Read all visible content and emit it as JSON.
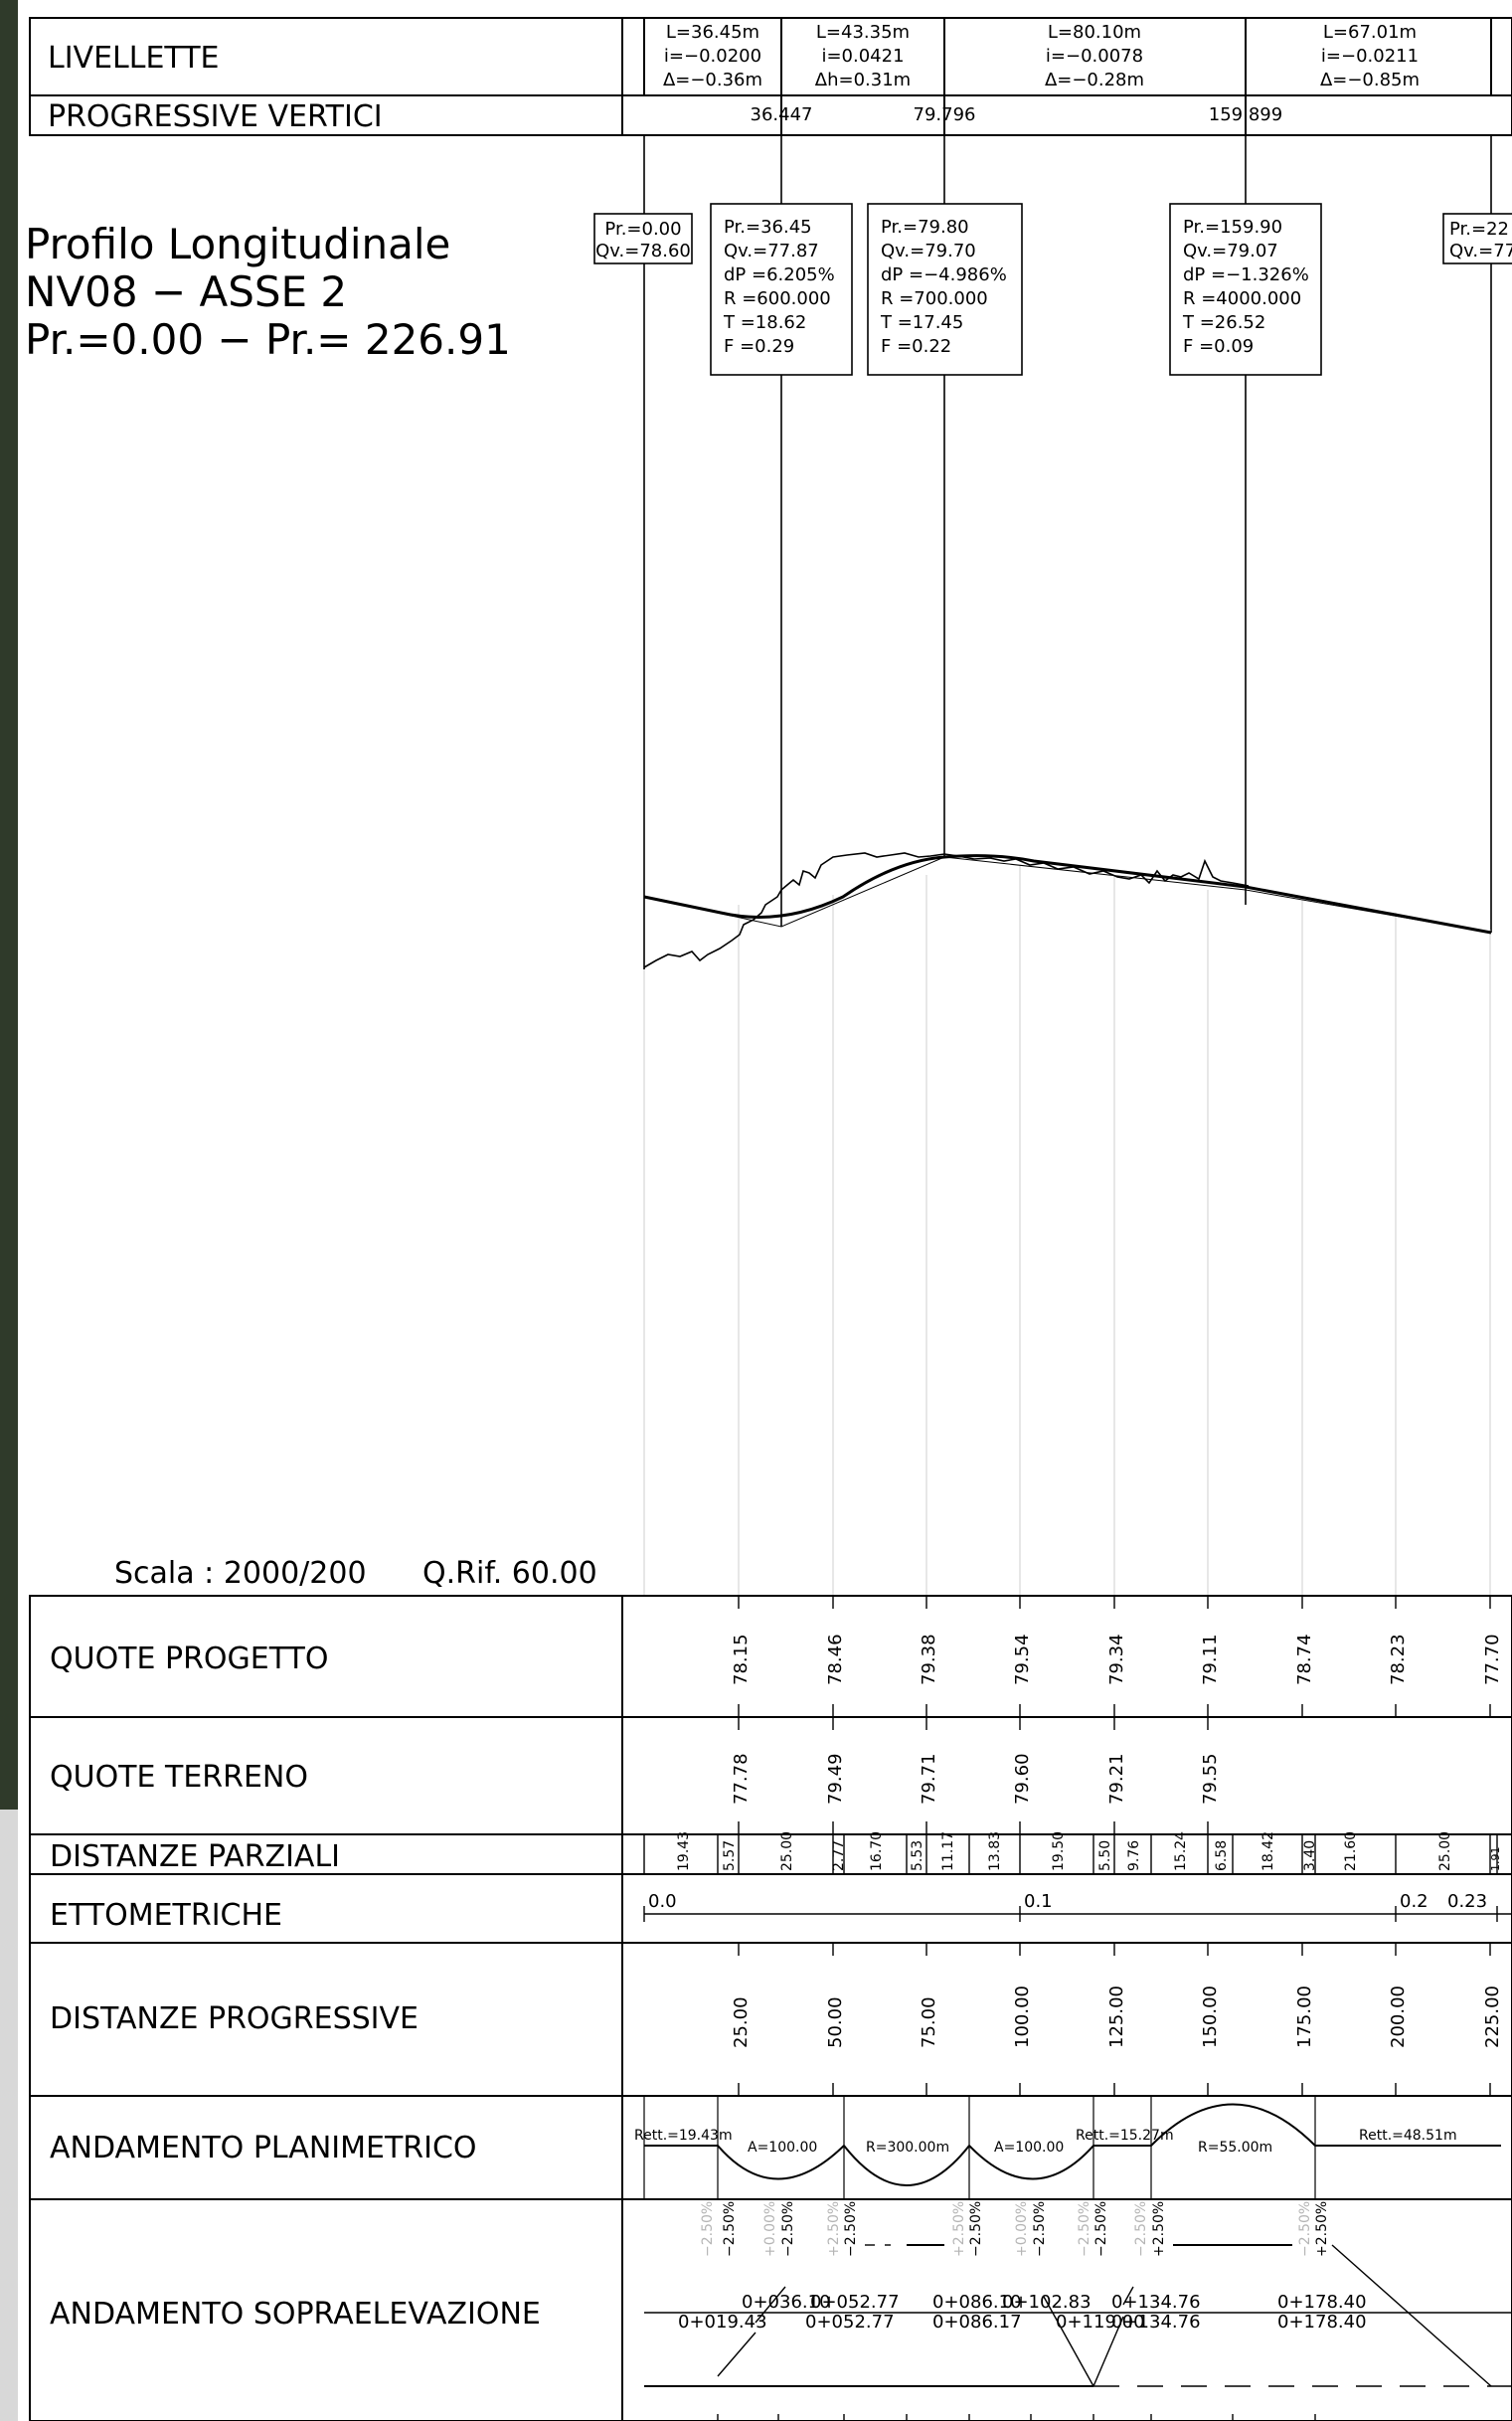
{
  "header_rows": {
    "livellette": "LIVELLETTE",
    "progressive_vertici": "PROGRESSIVE VERTICI"
  },
  "livellette": [
    [
      "L=36.45m",
      "i=−0.0200",
      "Δ=−0.36m"
    ],
    [
      "L=43.35m",
      "i=0.0421",
      "Δh=0.31m"
    ],
    [
      "L=80.10m",
      "i=−0.0078",
      "Δ=−0.28m"
    ],
    [
      "L=67.01m",
      "i=−0.0211",
      "Δ=−0.85m"
    ]
  ],
  "progressive_vertici": [
    "36.447",
    "79.796",
    "159.899"
  ],
  "title": [
    "Profilo Longitudinale",
    "NV08 − ASSE 2",
    "Pr.=0.00 − Pr.= 226.91"
  ],
  "vertex_boxes": [
    [
      "Pr.=0.00",
      "Qv.=78.60"
    ],
    [
      "Pr.=36.45",
      "Qv.=77.87",
      "dP =6.205%",
      "R =600.000",
      "T =18.62",
      "F =0.29"
    ],
    [
      "Pr.=79.80",
      "Qv.=79.70",
      "dP =−4.986%",
      "R =700.000",
      "T =17.45",
      "F =0.22"
    ],
    [
      "Pr.=159.90",
      "Qv.=79.07",
      "dP =−1.326%",
      "R =4000.000",
      "T =26.52",
      "F =0.09"
    ],
    [
      "Pr.=22",
      "Qv.=77"
    ]
  ],
  "scale": {
    "scala": "Scala : 2000/200",
    "qrif": "Q.Rif. 60.00"
  },
  "table_labels": {
    "quote_progetto": "QUOTE PROGETTO",
    "quote_terreno": "QUOTE TERRENO",
    "distanze_parziali": "DISTANZE PARZIALI",
    "ettometriche": "ETTOMETRICHE",
    "distanze_progressive": "DISTANZE PROGRESSIVE",
    "andamento_planimetrico": "ANDAMENTO PLANIMETRICO",
    "andamento_sopraelevazione": "ANDAMENTO SOPRAELEVAZIONE"
  },
  "quote_progetto": [
    "78.15",
    "78.46",
    "79.38",
    "79.54",
    "79.34",
    "79.11",
    "78.74",
    "78.23",
    "77.70"
  ],
  "quote_terreno": [
    "77.78",
    "79.49",
    "79.71",
    "79.60",
    "79.21",
    "79.55"
  ],
  "distanze_parziali": [
    "19.43",
    "5.57",
    "25.00",
    "2.77",
    "16.70",
    "5.53",
    "11.17",
    "13.83",
    "19.50",
    "5.50",
    "9.76",
    "15.24",
    "6.58",
    "18.42",
    "3.40",
    "21.60",
    "25.00",
    "1.91"
  ],
  "ettometriche": [
    "0.0",
    "0.1",
    "0.2",
    "0.23"
  ],
  "distanze_progressive": [
    "25.00",
    "50.00",
    "75.00",
    "100.00",
    "125.00",
    "150.00",
    "175.00",
    "200.00",
    "225.00"
  ],
  "planimetrico": [
    "Rett.=19.43m",
    "A=100.00",
    "R=300.00m",
    "A=100.00",
    "Rett.=15.27m",
    "R=55.00m",
    "Rett.=48.51m"
  ],
  "sopraelevazione": {
    "slopes": [
      [
        "−2.50%",
        "−2.50%"
      ],
      [
        "+0.00%",
        "−2.50%"
      ],
      [
        "+2.50%",
        "−2.50%"
      ],
      [
        "+2.50%",
        "−2.50%"
      ],
      [
        "+0.00%",
        "−2.50%"
      ],
      [
        "−2.50%",
        "−2.50%"
      ],
      [
        "−2.50%",
        "+2.50%"
      ],
      [
        "−2.50%",
        "+2.50%"
      ]
    ],
    "stations_top": [
      "0+036.10",
      "0+052.77",
      "0+086.10",
      "0+102.83",
      "0+134.76",
      "0+178.40"
    ],
    "stations_bottom": [
      "0+019.43",
      "0+052.77",
      "0+086.17",
      "0+119.00",
      "0+134.76",
      "0+178.40"
    ]
  }
}
